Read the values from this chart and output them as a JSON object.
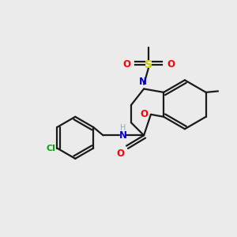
{
  "bg_color": "#ebebeb",
  "bond_color": "#1a1a1a",
  "colors": {
    "N": "#0000cc",
    "O": "#ff0000",
    "S": "#cccc00",
    "Cl": "#00aa00",
    "C": "#1a1a1a",
    "H": "#7fb0b0"
  },
  "figsize": [
    3.0,
    3.0
  ],
  "dpi": 100
}
